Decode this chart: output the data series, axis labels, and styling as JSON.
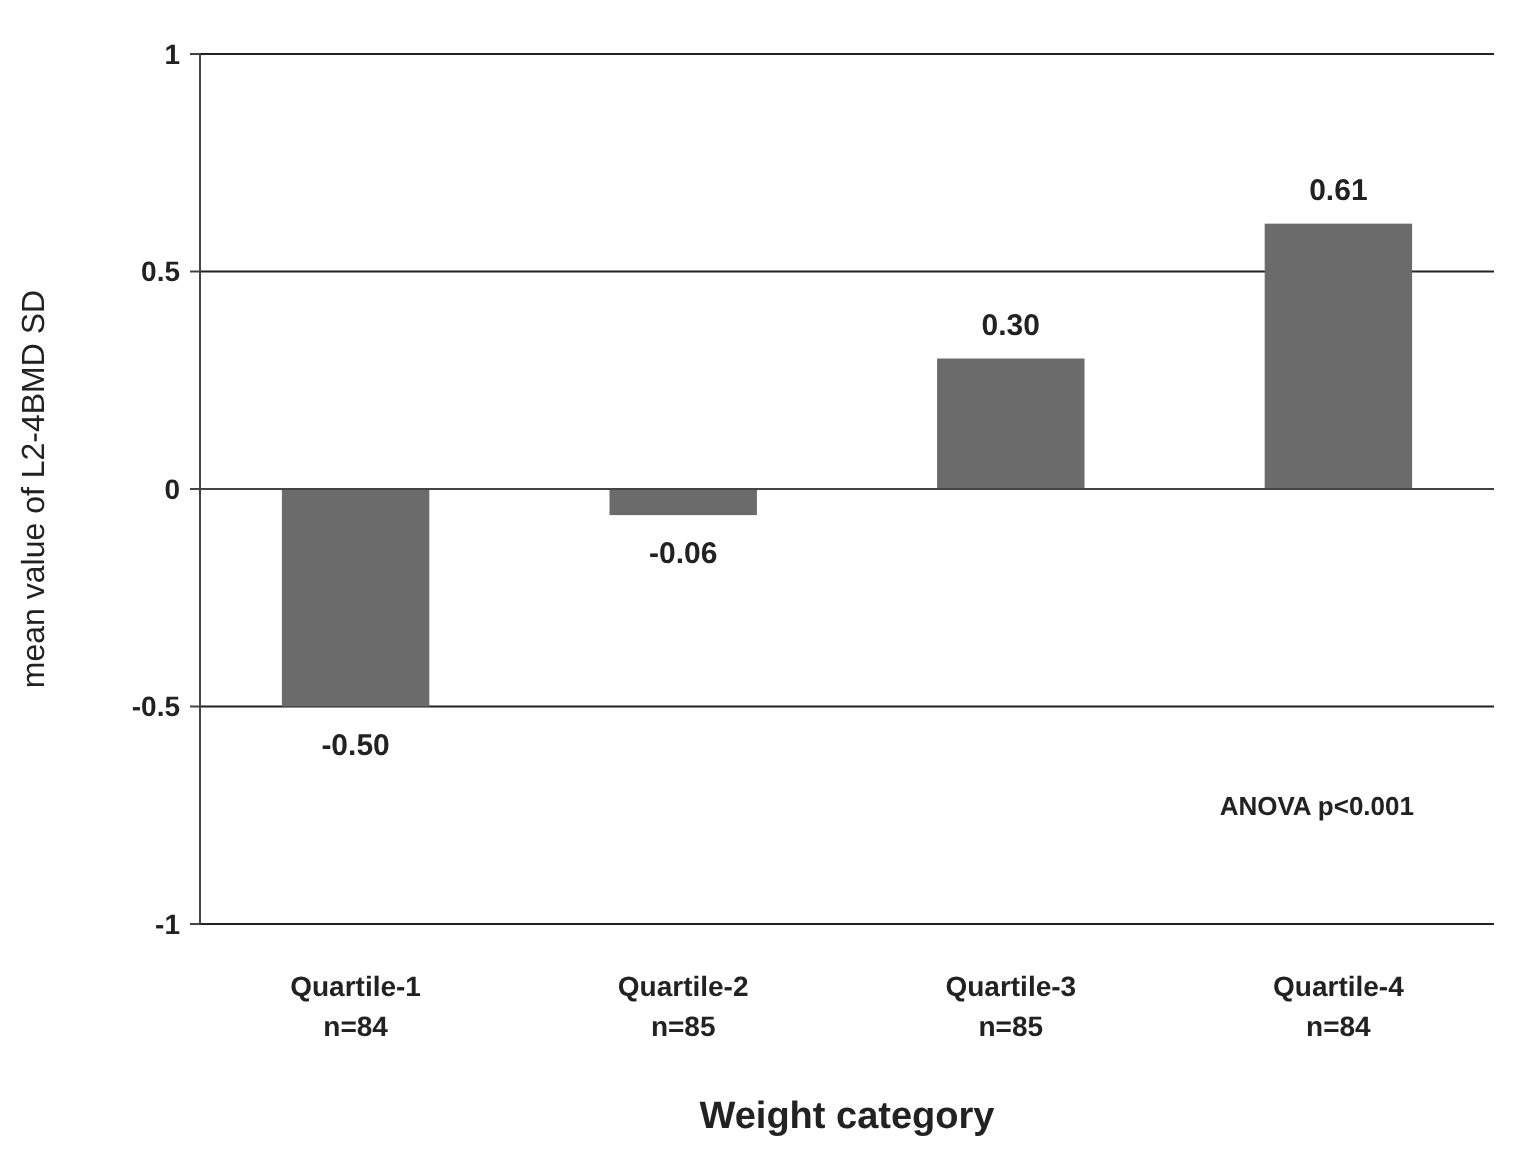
{
  "chart_data": {
    "type": "bar",
    "xlabel": "Weight category",
    "ylabel": "mean value of L2-4BMD SD",
    "categories": [
      "Quartile-1\nn=84",
      "Quartile-2\nn=85",
      "Quartile-3\nn=85",
      "Quartile-4\nn=84"
    ],
    "values": [
      -0.5,
      -0.06,
      0.3,
      0.61
    ],
    "color": "#6b6b6b",
    "data_labels": true,
    "value_labels": [
      "-0.50",
      "-0.06",
      "0.30",
      "0.61"
    ],
    "ylim": [
      -1,
      1
    ],
    "yticks": [
      -1,
      -0.5,
      0,
      0.5,
      1
    ],
    "grid": "y",
    "annotations": [
      "ANOVA p<0.001"
    ]
  }
}
